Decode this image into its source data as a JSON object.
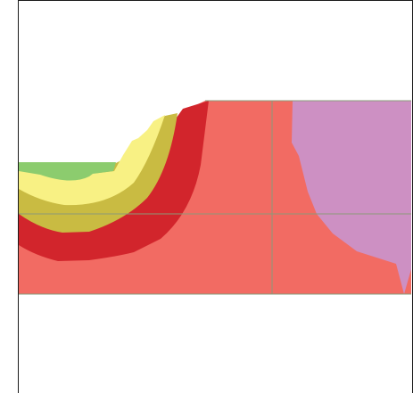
{
  "diagram": {
    "type": "geological-cross-section",
    "grid": true,
    "colors": {
      "background": "#ffffff",
      "frame": "#1a1a1a",
      "grid_line": "#8a9a78",
      "rock_pink": "#f26b63",
      "rock_red": "#d2252c",
      "rock_olive": "#c9bb42",
      "rock_yellow": "#f8f184",
      "rock_green": "#8ccc6e",
      "rock_violet": "#cd90c3"
    },
    "layers": [
      {
        "name": "pink-base-layer",
        "color_key": "rock_pink"
      },
      {
        "name": "red-layer",
        "color_key": "rock_red"
      },
      {
        "name": "olive-layer",
        "color_key": "rock_olive"
      },
      {
        "name": "yellow-layer",
        "color_key": "rock_yellow"
      },
      {
        "name": "green-layer",
        "color_key": "rock_green"
      },
      {
        "name": "violet-intrusion",
        "color_key": "rock_violet"
      }
    ]
  }
}
